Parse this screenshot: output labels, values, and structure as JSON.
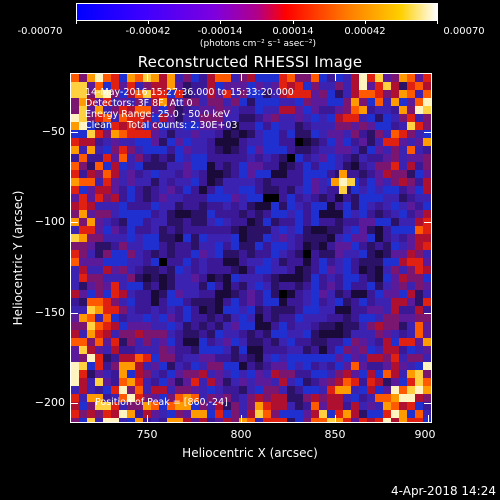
{
  "colorbar": {
    "tick_labels": [
      "-0.00070",
      "-0.00042",
      "-0.00014",
      "0.00014",
      "0.00042",
      "0.00070"
    ],
    "unit_label": "(photons cm⁻² s⁻¹ asec⁻²)",
    "min": -0.0007,
    "max": 0.0007,
    "colors": [
      "#0000ff",
      "#4b00ff",
      "#8b00d0",
      "#ff0000",
      "#ff7800",
      "#ffd000",
      "#ffffff"
    ]
  },
  "plot": {
    "title": "Reconstructed RHESSI Image",
    "info_lines": [
      "14-May-2016 15:27:36.000 to 15:33:20.000",
      "Detectors: 3F 8F, Att 0",
      "Energy Range: 25.0 - 50.0 keV",
      "Clean     Total counts: 2.30E+03"
    ],
    "peak_text": "Position of Peak = [860,-24]",
    "x_label": "Heliocentric X (arcsec)",
    "y_label": "Heliocentric Y (arcsec)",
    "x_ticks": [
      {
        "value": 750,
        "label": "750"
      },
      {
        "value": 800,
        "label": "800"
      },
      {
        "value": 850,
        "label": "850"
      },
      {
        "value": 900,
        "label": "900"
      }
    ],
    "y_ticks": [
      {
        "value": -50,
        "label": "−50"
      },
      {
        "value": -100,
        "label": "−100"
      },
      {
        "value": -150,
        "label": "−150"
      },
      {
        "value": -200,
        "label": "−200"
      }
    ],
    "xlim": [
      712,
      905
    ],
    "ylim": [
      -215,
      -27
    ]
  },
  "footer": {
    "timestamp": "4-Apr-2018 14:24"
  }
}
